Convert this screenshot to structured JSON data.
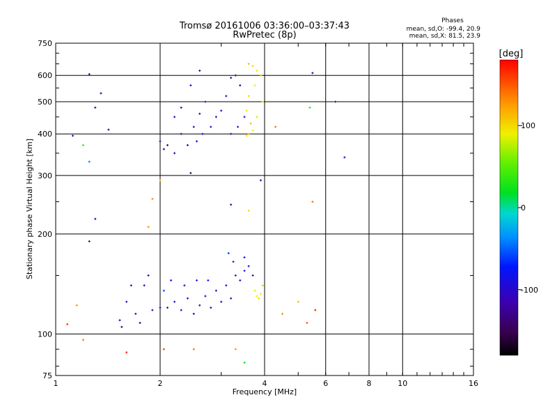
{
  "chart_data": {
    "type": "scatter",
    "title": "Tromsø 20161006 03:36:00–03:37:43",
    "subtitle": "RwPretec (8p)",
    "stats": {
      "heading": "Phases",
      "line1": "mean, sd,O: -99.4, 20.9",
      "line2": "mean, sd,X:  81.5, 23.9"
    },
    "xlabel": "Frequency [MHz]",
    "ylabel": "Stationary phase Virtual Height [km]",
    "x_scale": "log",
    "y_scale": "log",
    "xlim": [
      1,
      16
    ],
    "ylim": [
      75,
      750
    ],
    "x_ticks": [
      1,
      2,
      4,
      6,
      8,
      10,
      16
    ],
    "y_ticks": [
      75,
      100,
      200,
      300,
      400,
      500,
      600,
      750
    ],
    "grid": true,
    "colorbar": {
      "label": "[deg]",
      "range": [
        -180,
        180
      ],
      "ticks": [
        -100,
        0,
        100
      ]
    },
    "series": [
      {
        "points": [
          [
            1.53,
            110,
            -110
          ],
          [
            1.6,
            125,
            -105
          ],
          [
            1.7,
            115,
            -100
          ],
          [
            1.8,
            140,
            -95
          ],
          [
            1.65,
            140,
            -120
          ],
          [
            1.9,
            118,
            -90
          ],
          [
            2.0,
            120,
            -100
          ],
          [
            2.1,
            120,
            -108
          ],
          [
            2.2,
            125,
            -95
          ],
          [
            2.3,
            118,
            -100
          ],
          [
            2.4,
            128,
            -90
          ],
          [
            2.5,
            115,
            -105
          ],
          [
            2.6,
            122,
            -100
          ],
          [
            2.7,
            130,
            -92
          ],
          [
            2.8,
            120,
            -110
          ],
          [
            2.9,
            135,
            -98
          ],
          [
            3.0,
            125,
            -100
          ],
          [
            3.1,
            140,
            -90
          ],
          [
            3.2,
            128,
            -105
          ],
          [
            3.3,
            150,
            -95
          ],
          [
            3.4,
            145,
            -110
          ],
          [
            3.5,
            155,
            -100
          ],
          [
            3.6,
            160,
            -90
          ],
          [
            3.7,
            150,
            -120
          ],
          [
            3.5,
            170,
            -80
          ],
          [
            1.55,
            105,
            -140
          ],
          [
            1.75,
            108,
            -130
          ],
          [
            2.05,
            135,
            -60
          ],
          [
            2.15,
            145,
            -75
          ],
          [
            2.55,
            145,
            -70
          ],
          [
            2.75,
            145,
            -85
          ],
          [
            3.25,
            165,
            -70
          ],
          [
            3.15,
            175,
            -60
          ],
          [
            1.85,
            150,
            -115
          ],
          [
            2.35,
            140,
            -100
          ],
          [
            3.8,
            130,
            90
          ],
          [
            3.9,
            132,
            95
          ],
          [
            3.85,
            128,
            100
          ],
          [
            3.75,
            135,
            85
          ],
          [
            3.95,
            140,
            70
          ]
        ]
      },
      {
        "points": [
          [
            2.0,
            380,
            -130
          ],
          [
            2.05,
            360,
            -135
          ],
          [
            2.1,
            370,
            -140
          ],
          [
            2.2,
            350,
            -125
          ],
          [
            2.3,
            400,
            -120
          ],
          [
            2.4,
            370,
            -115
          ],
          [
            2.5,
            420,
            -110
          ],
          [
            2.6,
            460,
            -105
          ],
          [
            2.55,
            380,
            -100
          ],
          [
            2.65,
            400,
            -95
          ],
          [
            2.7,
            500,
            -100
          ],
          [
            2.8,
            420,
            -110
          ],
          [
            2.9,
            450,
            -105
          ],
          [
            3.0,
            470,
            -100
          ],
          [
            3.1,
            520,
            -110
          ],
          [
            3.2,
            400,
            -115
          ],
          [
            3.3,
            600,
            -120
          ],
          [
            3.4,
            560,
            -125
          ],
          [
            3.2,
            590,
            -130
          ],
          [
            2.6,
            620,
            -135
          ],
          [
            2.2,
            450,
            -100
          ],
          [
            2.3,
            480,
            -90
          ],
          [
            2.45,
            560,
            -95
          ],
          [
            3.35,
            420,
            -110
          ],
          [
            3.5,
            450,
            -100
          ],
          [
            3.6,
            650,
            110
          ],
          [
            3.7,
            640,
            100
          ],
          [
            3.8,
            620,
            95
          ],
          [
            3.9,
            600,
            110
          ],
          [
            3.75,
            560,
            90
          ],
          [
            3.6,
            520,
            100
          ],
          [
            3.55,
            470,
            95
          ],
          [
            3.65,
            430,
            110
          ],
          [
            3.6,
            400,
            115
          ],
          [
            3.8,
            450,
            80
          ],
          [
            3.95,
            500,
            100
          ],
          [
            3.55,
            395,
            100
          ],
          [
            3.7,
            410,
            90
          ]
        ]
      },
      {
        "points": [
          [
            1.15,
            122,
            130
          ],
          [
            1.08,
            107,
            160
          ],
          [
            1.2,
            96,
            140
          ],
          [
            1.25,
            605,
            -120
          ],
          [
            1.35,
            530,
            -130
          ],
          [
            1.3,
            480,
            -120
          ],
          [
            1.42,
            412,
            -130
          ],
          [
            1.12,
            395,
            -110
          ],
          [
            1.2,
            370,
            40
          ],
          [
            1.25,
            330,
            -40
          ],
          [
            1.3,
            222,
            -120
          ],
          [
            1.25,
            190,
            -130
          ],
          [
            1.6,
            88,
            170
          ],
          [
            1.9,
            255,
            130
          ],
          [
            2.0,
            290,
            120
          ],
          [
            1.85,
            210,
            130
          ],
          [
            2.05,
            90,
            160
          ],
          [
            2.5,
            90,
            140
          ],
          [
            3.3,
            90,
            130
          ],
          [
            3.5,
            82,
            20
          ],
          [
            4.3,
            420,
            140
          ],
          [
            5.4,
            480,
            30
          ],
          [
            5.5,
            250,
            140
          ],
          [
            6.4,
            500,
            -120
          ],
          [
            6.8,
            340,
            -90
          ],
          [
            5.5,
            610,
            -120
          ],
          [
            4.5,
            115,
            130
          ],
          [
            5.0,
            125,
            110
          ],
          [
            5.3,
            108,
            150
          ],
          [
            5.6,
            118,
            170
          ],
          [
            3.2,
            245,
            -130
          ],
          [
            3.6,
            235,
            100
          ],
          [
            3.9,
            290,
            -120
          ],
          [
            2.45,
            305,
            -150
          ]
        ]
      }
    ]
  }
}
